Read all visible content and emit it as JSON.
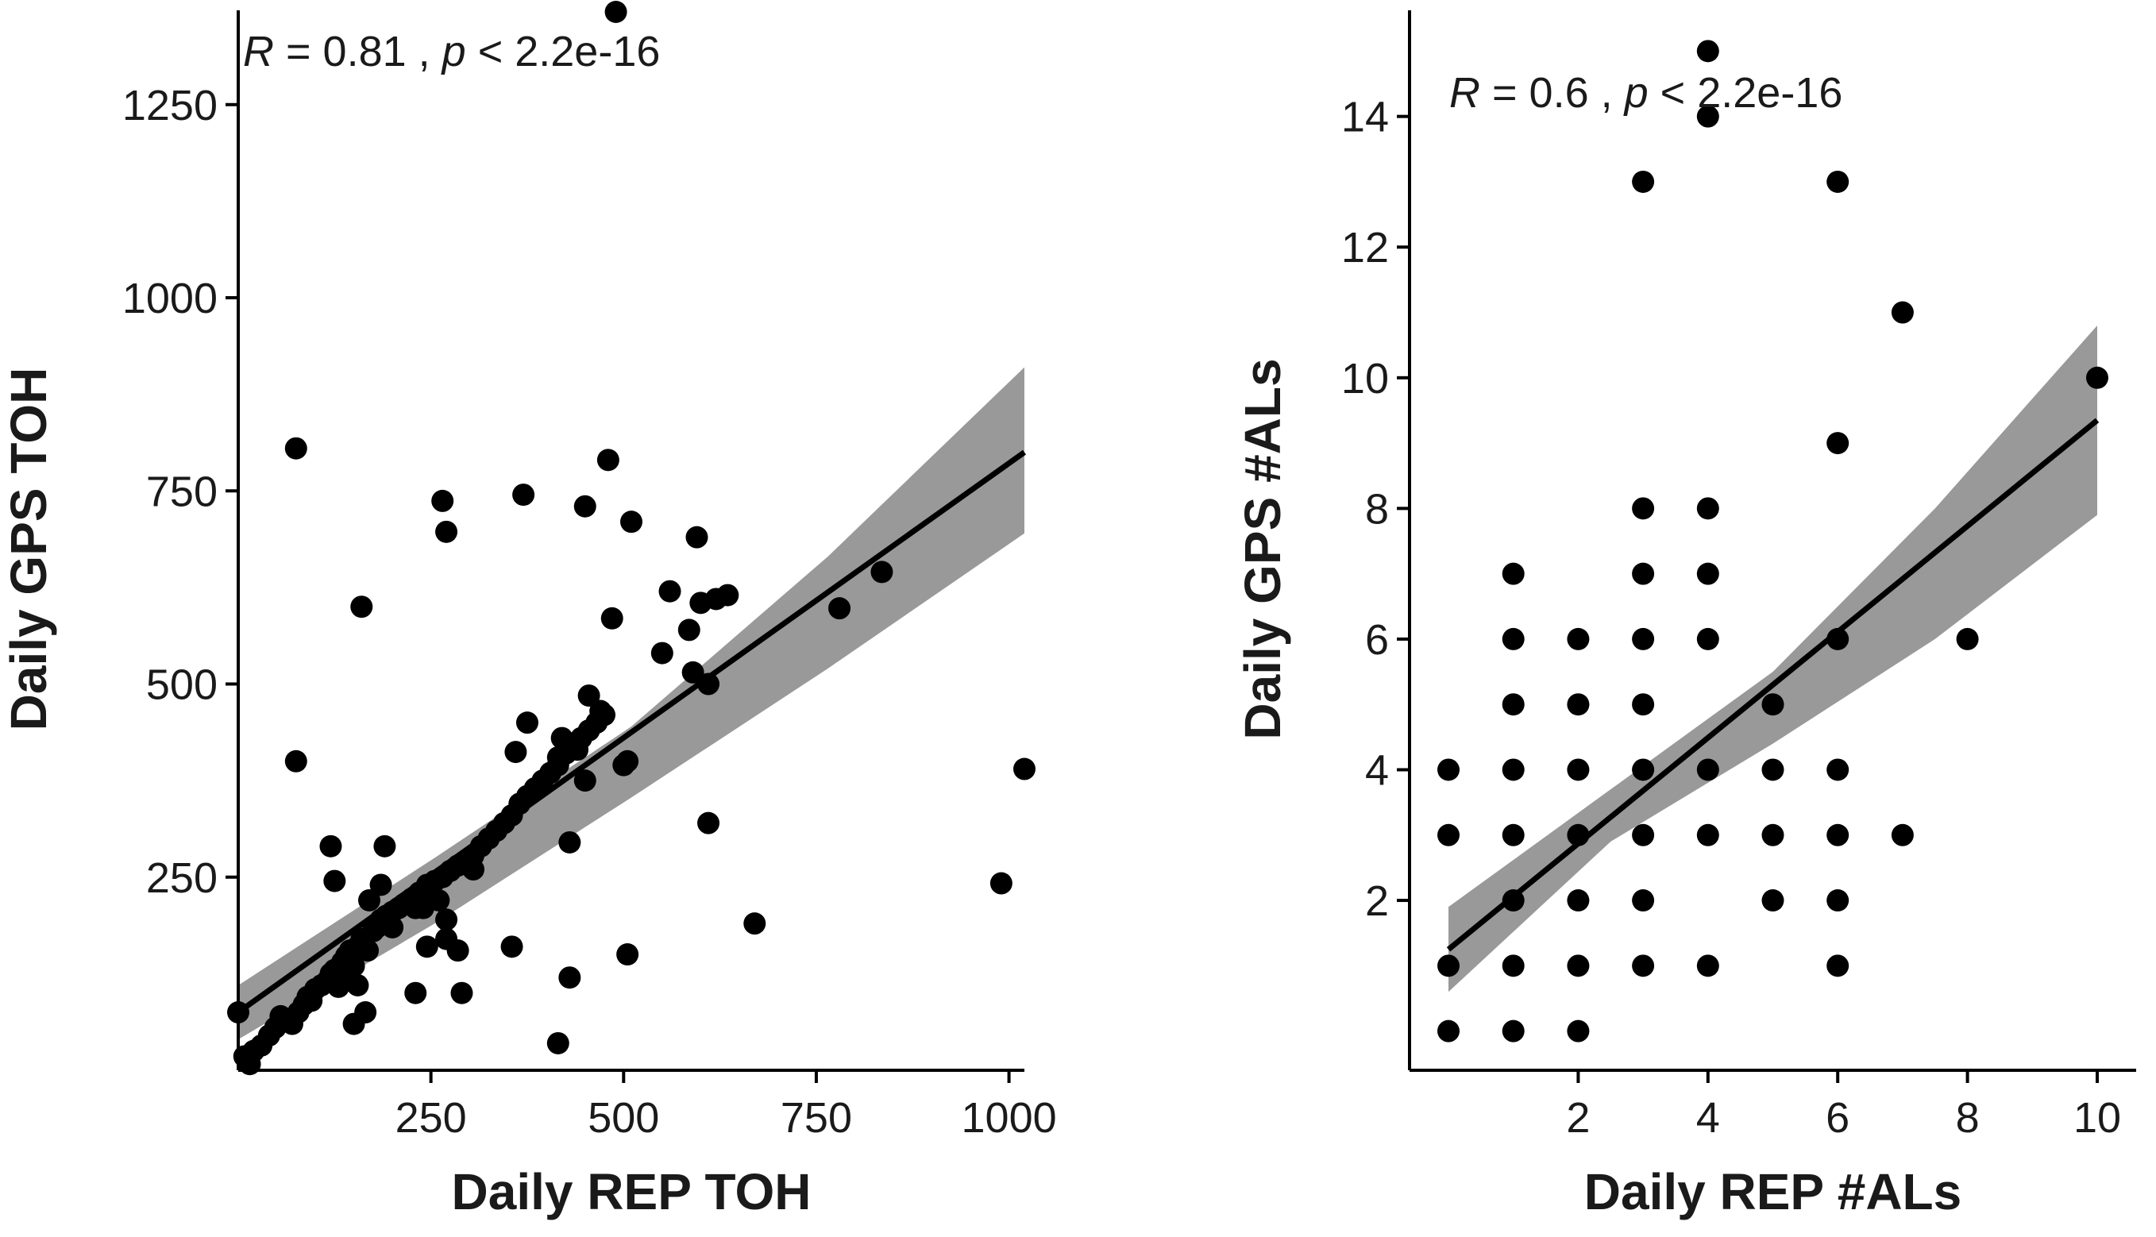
{
  "figure": {
    "colors": {
      "points": "#000000",
      "line": "#000000",
      "ribbon": "#999999",
      "axis": "#000000"
    }
  },
  "chart_data": [
    {
      "type": "scatter",
      "id": "toh",
      "title": "",
      "xlabel": "Daily REP TOH",
      "ylabel": "Daily GPS TOH",
      "xlim": [
        0,
        1020
      ],
      "ylim": [
        0,
        1370
      ],
      "xticks": [
        250,
        500,
        750,
        1000
      ],
      "yticks": [
        250,
        500,
        750,
        1000,
        1250
      ],
      "grid": false,
      "stat": {
        "r_sym": "R",
        "r_text": " = 0.81 , ",
        "p_sym": "p",
        "p_text": " < 2.2e-16"
      },
      "fit": {
        "x": [
          0,
          1020
        ],
        "y": [
          75,
          800
        ]
      },
      "ci": {
        "x": [
          0,
          255,
          510,
          765,
          1020
        ],
        "upper": [
          110,
          275,
          445,
          665,
          910
        ],
        "lower": [
          40,
          190,
          353,
          520,
          695
        ]
      },
      "points": [
        [
          0,
          75
        ],
        [
          8,
          18
        ],
        [
          15,
          8
        ],
        [
          20,
          25
        ],
        [
          30,
          32
        ],
        [
          40,
          45
        ],
        [
          48,
          55
        ],
        [
          55,
          70
        ],
        [
          65,
          65
        ],
        [
          70,
          60
        ],
        [
          78,
          75
        ],
        [
          85,
          85
        ],
        [
          90,
          95
        ],
        [
          95,
          90
        ],
        [
          100,
          105
        ],
        [
          108,
          110
        ],
        [
          115,
          115
        ],
        [
          120,
          125
        ],
        [
          125,
          130
        ],
        [
          130,
          108
        ],
        [
          135,
          140
        ],
        [
          140,
          148
        ],
        [
          145,
          155
        ],
        [
          150,
          135
        ],
        [
          155,
          160
        ],
        [
          160,
          170
        ],
        [
          168,
          155
        ],
        [
          175,
          180
        ],
        [
          180,
          185
        ],
        [
          185,
          195
        ],
        [
          192,
          200
        ],
        [
          200,
          205
        ],
        [
          208,
          210
        ],
        [
          215,
          215
        ],
        [
          225,
          222
        ],
        [
          235,
          230
        ],
        [
          245,
          240
        ],
        [
          255,
          245
        ],
        [
          265,
          250
        ],
        [
          275,
          258
        ],
        [
          285,
          265
        ],
        [
          295,
          270
        ],
        [
          305,
          278
        ],
        [
          315,
          290
        ],
        [
          325,
          300
        ],
        [
          335,
          310
        ],
        [
          345,
          320
        ],
        [
          355,
          330
        ],
        [
          365,
          345
        ],
        [
          375,
          355
        ],
        [
          385,
          365
        ],
        [
          395,
          375
        ],
        [
          405,
          385
        ],
        [
          415,
          395
        ],
        [
          425,
          410
        ],
        [
          435,
          420
        ],
        [
          445,
          430
        ],
        [
          455,
          440
        ],
        [
          465,
          450
        ],
        [
          475,
          460
        ],
        [
          120,
          290
        ],
        [
          125,
          245
        ],
        [
          140,
          130
        ],
        [
          155,
          110
        ],
        [
          170,
          220
        ],
        [
          185,
          240
        ],
        [
          190,
          290
        ],
        [
          200,
          185
        ],
        [
          230,
          210
        ],
        [
          240,
          210
        ],
        [
          260,
          220
        ],
        [
          270,
          195
        ],
        [
          285,
          155
        ],
        [
          290,
          100
        ],
        [
          305,
          260
        ],
        [
          230,
          100
        ],
        [
          245,
          160
        ],
        [
          270,
          170
        ],
        [
          150,
          60
        ],
        [
          165,
          75
        ],
        [
          160,
          600
        ],
        [
          75,
          805
        ],
        [
          75,
          400
        ],
        [
          265,
          737
        ],
        [
          270,
          697
        ],
        [
          370,
          745
        ],
        [
          360,
          412
        ],
        [
          375,
          450
        ],
        [
          415,
          405
        ],
        [
          420,
          430
        ],
        [
          440,
          415
        ],
        [
          450,
          375
        ],
        [
          455,
          485
        ],
        [
          470,
          465
        ],
        [
          485,
          585
        ],
        [
          480,
          790
        ],
        [
          450,
          730
        ],
        [
          510,
          710
        ],
        [
          505,
          400
        ],
        [
          500,
          395
        ],
        [
          550,
          540
        ],
        [
          560,
          620
        ],
        [
          585,
          570
        ],
        [
          590,
          515
        ],
        [
          595,
          690
        ],
        [
          600,
          605
        ],
        [
          610,
          500
        ],
        [
          610,
          320
        ],
        [
          620,
          610
        ],
        [
          635,
          615
        ],
        [
          780,
          598
        ],
        [
          835,
          645
        ],
        [
          990,
          242
        ],
        [
          1020,
          390
        ],
        [
          670,
          190
        ],
        [
          505,
          150
        ],
        [
          355,
          160
        ],
        [
          430,
          120
        ],
        [
          415,
          35
        ],
        [
          430,
          295
        ],
        [
          490,
          1370
        ]
      ]
    },
    {
      "type": "scatter",
      "id": "als",
      "title": "",
      "xlabel": "Daily REP #ALs",
      "ylabel": "Daily GPS #ALs",
      "xlim": [
        -0.6,
        10.6
      ],
      "ylim": [
        -0.6,
        15.6
      ],
      "xticks": [
        2,
        4,
        6,
        8,
        10
      ],
      "yticks": [
        2,
        4,
        6,
        8,
        10,
        12,
        14
      ],
      "grid": false,
      "stat": {
        "r_sym": "R",
        "r_text": " = 0.6 , ",
        "p_sym": "p",
        "p_text": " < 2.2e-16"
      },
      "fit": {
        "x": [
          0,
          10
        ],
        "y": [
          1.25,
          9.35
        ]
      },
      "ci": {
        "x": [
          0,
          2.5,
          5,
          7.5,
          10
        ],
        "upper": [
          1.9,
          3.7,
          5.5,
          8.0,
          10.8
        ],
        "lower": [
          0.6,
          2.9,
          4.4,
          6.0,
          7.9
        ]
      },
      "points": [
        [
          0,
          0
        ],
        [
          0,
          1
        ],
        [
          0,
          3
        ],
        [
          0,
          4
        ],
        [
          1,
          0
        ],
        [
          1,
          1
        ],
        [
          1,
          2
        ],
        [
          1,
          3
        ],
        [
          1,
          4
        ],
        [
          1,
          5
        ],
        [
          1,
          6
        ],
        [
          1,
          7
        ],
        [
          2,
          0
        ],
        [
          2,
          1
        ],
        [
          2,
          2
        ],
        [
          2,
          3
        ],
        [
          2,
          4
        ],
        [
          2,
          5
        ],
        [
          2,
          6
        ],
        [
          3,
          1
        ],
        [
          3,
          2
        ],
        [
          3,
          3
        ],
        [
          3,
          4
        ],
        [
          3,
          5
        ],
        [
          3,
          6
        ],
        [
          3,
          7
        ],
        [
          3,
          8
        ],
        [
          3,
          13
        ],
        [
          4,
          1
        ],
        [
          4,
          3
        ],
        [
          4,
          4
        ],
        [
          4,
          6
        ],
        [
          4,
          7
        ],
        [
          4,
          8
        ],
        [
          4,
          14
        ],
        [
          4,
          15
        ],
        [
          5,
          2
        ],
        [
          5,
          3
        ],
        [
          5,
          4
        ],
        [
          5,
          5
        ],
        [
          6,
          1
        ],
        [
          6,
          2
        ],
        [
          6,
          3
        ],
        [
          6,
          4
        ],
        [
          6,
          6
        ],
        [
          6,
          9
        ],
        [
          6,
          13
        ],
        [
          7,
          3
        ],
        [
          7,
          11
        ],
        [
          8,
          6
        ],
        [
          10,
          10
        ]
      ]
    }
  ]
}
